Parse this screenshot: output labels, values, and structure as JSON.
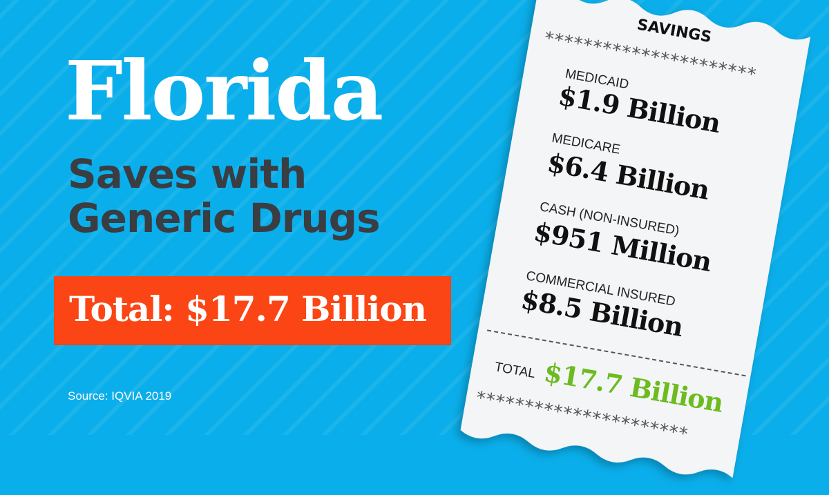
{
  "headline": {
    "title": "Florida",
    "subtitle_line1": "Saves with",
    "subtitle_line2": "Generic Drugs",
    "total_banner": "Total: $17.7 Billion",
    "source": "Source: IQVIA 2019"
  },
  "receipt": {
    "heading": "SAVINGS",
    "stars_top": "**********************",
    "items": [
      {
        "label": "MEDICAID",
        "amount": "$1.9 Billion"
      },
      {
        "label": "MEDICARE",
        "amount": "$6.4 Billion"
      },
      {
        "label": "CASH (NON-INSURED)",
        "amount": "$951 Million"
      },
      {
        "label": "COMMERCIAL INSURED",
        "amount": "$8.5 Billion"
      }
    ],
    "total_label": "TOTAL",
    "total_amount": "$17.7 Billion",
    "stars_bottom": "**********************"
  },
  "colors": {
    "background": "#0aaeea",
    "banner": "#fb4514",
    "total_green": "#6cbb1f",
    "subtitle": "#3a3d42"
  }
}
